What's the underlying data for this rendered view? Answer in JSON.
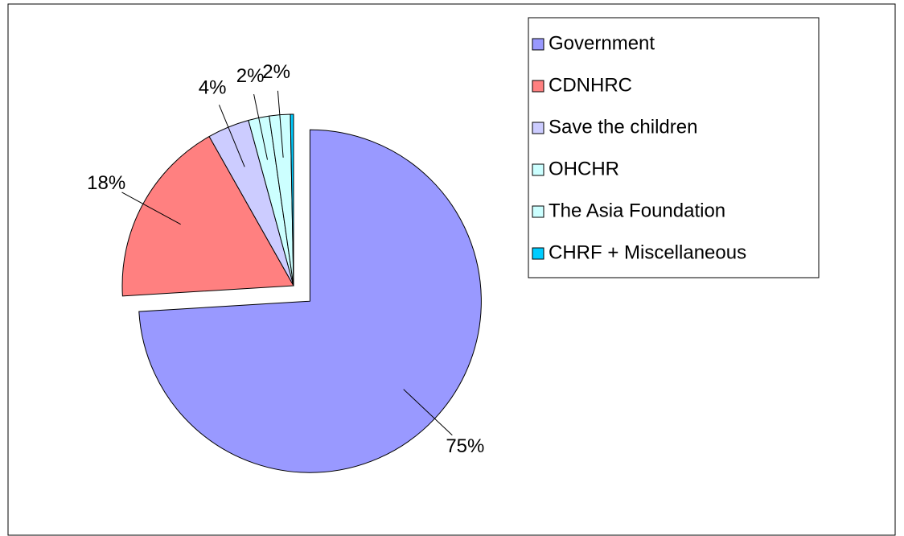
{
  "chart_data": {
    "type": "pie",
    "categories": [
      "Government",
      "CDNHRC",
      "Save the children",
      "OHCHR",
      "The Asia Foundation",
      "CHRF + Miscellaneous"
    ],
    "values": [
      75,
      18,
      4,
      2,
      2,
      0.3
    ],
    "value_labels": [
      "75%",
      "18%",
      "4%",
      "2%",
      "2%",
      null
    ],
    "colors": [
      "#9999ff",
      "#ff8080",
      "#ccccff",
      "#ccffff",
      "#ccffff",
      "#00ccff"
    ],
    "legend": "right"
  }
}
